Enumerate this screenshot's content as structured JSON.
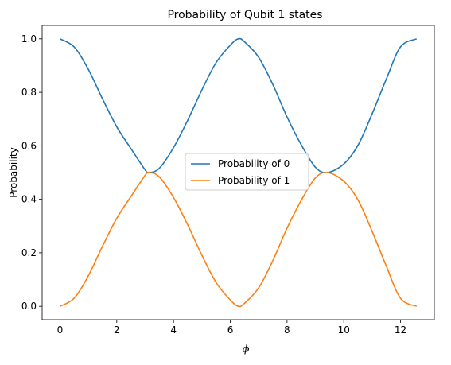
{
  "chart_data": {
    "type": "line",
    "title": "Probability of Qubit 1 states",
    "xlabel": "ϕ",
    "ylabel": "Probability",
    "xlim": [
      -0.63,
      13.19
    ],
    "ylim": [
      -0.05,
      1.05
    ],
    "xticks": [
      0,
      2,
      4,
      6,
      8,
      10,
      12
    ],
    "yticks": [
      0.0,
      0.2,
      0.4,
      0.6,
      0.8,
      1.0
    ],
    "xtick_labels": [
      "0",
      "2",
      "4",
      "6",
      "8",
      "10",
      "12"
    ],
    "ytick_labels": [
      "0.0",
      "0.2",
      "0.4",
      "0.6",
      "0.8",
      "1.0"
    ],
    "grid": false,
    "legend_position": "center-right",
    "x": [
      0.0,
      0.5,
      1.0,
      1.5,
      2.0,
      2.5,
      3.0,
      3.1416,
      3.5,
      4.0,
      4.5,
      5.0,
      5.5,
      6.0,
      6.2832,
      6.5,
      7.0,
      7.5,
      8.0,
      8.5,
      9.0,
      9.4248,
      10.0,
      10.5,
      11.0,
      11.5,
      12.0,
      12.5664
    ],
    "series": [
      {
        "name": "Probability of 0",
        "color": "#1f77b4",
        "values": [
          1.0,
          0.9693,
          0.8853,
          0.7748,
          0.6708,
          0.5895,
          0.51,
          0.5,
          0.516,
          0.5932,
          0.6956,
          0.809,
          0.911,
          0.976,
          1.0,
          0.989,
          0.931,
          0.829,
          0.708,
          0.604,
          0.52,
          0.5,
          0.532,
          0.602,
          0.72,
          0.85,
          0.97,
          1.0
        ]
      },
      {
        "name": "Probability of 1",
        "color": "#ff7f0e",
        "values": [
          0.0,
          0.0307,
          0.1147,
          0.2252,
          0.3292,
          0.4105,
          0.49,
          0.5,
          0.484,
          0.4068,
          0.3044,
          0.191,
          0.089,
          0.024,
          0.0,
          0.011,
          0.069,
          0.171,
          0.292,
          0.396,
          0.48,
          0.5,
          0.468,
          0.398,
          0.28,
          0.15,
          0.03,
          0.0
        ]
      }
    ]
  }
}
